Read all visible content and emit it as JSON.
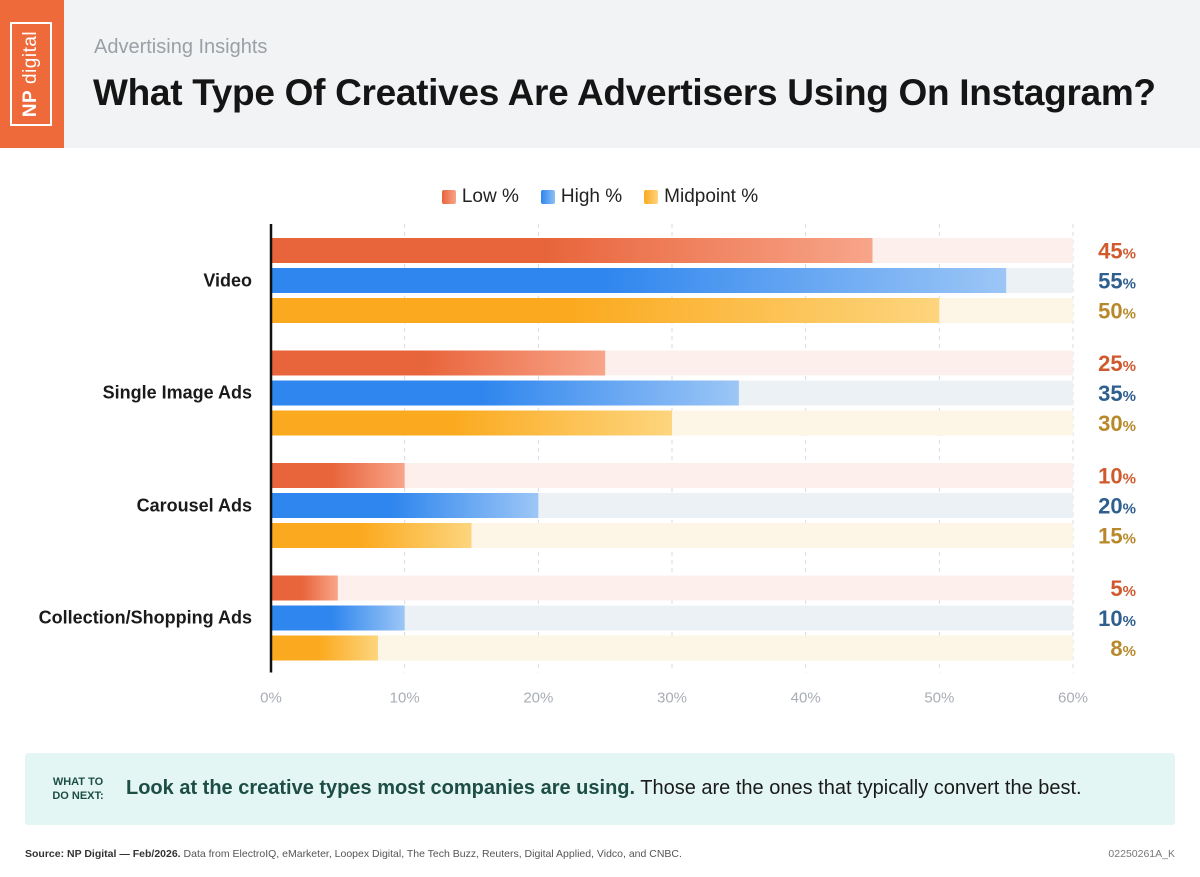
{
  "header": {
    "logo_np": "NP",
    "logo_digital": "digital",
    "kicker": "Advertising Insights",
    "title": "What Type Of Creatives Are Advertisers Using On Instagram?"
  },
  "legend": [
    {
      "label": "Low %",
      "color": "#ee6a3a"
    },
    {
      "label": "High %",
      "color": "#3b8ef0"
    },
    {
      "label": "Midpoint %",
      "color": "#fdb52d"
    }
  ],
  "chart_data": {
    "type": "bar",
    "orientation": "horizontal",
    "categories": [
      "Video",
      "Single Image Ads",
      "Carousel Ads",
      "Collection/Shopping Ads"
    ],
    "series": [
      {
        "name": "Low %",
        "values": [
          45,
          25,
          10,
          5
        ],
        "color": "#e8643a",
        "label_color": "#d05a2e",
        "track_color": "#fdf0ec"
      },
      {
        "name": "High %",
        "values": [
          55,
          35,
          20,
          10
        ],
        "color": "#2f86ee",
        "label_color": "#2f5f8f",
        "track_color": "#ecf1f6"
      },
      {
        "name": "Midpoint %",
        "values": [
          50,
          30,
          15,
          8
        ],
        "color": "#fbaa1f",
        "label_color": "#b8892a",
        "track_color": "#fdf6e6"
      }
    ],
    "value_suffix": "%",
    "xlim": [
      0,
      60
    ],
    "ticks": [
      "0%",
      "10%",
      "20%",
      "30%",
      "40%",
      "50%",
      "60%"
    ],
    "grid": true
  },
  "callout": {
    "tag_line1": "WHAT TO",
    "tag_line2": "DO NEXT:",
    "bold": "Look at the creative types most companies are using.",
    "rest": " Those are the ones that typically convert the best."
  },
  "footer": {
    "source_bold": "Source: NP Digital — Feb/2026.",
    "source_rest": " Data from ElectroIQ, eMarketer, Loopex Digital, The Tech Buzz, Reuters, Digital Applied, Vidco, and CNBC.",
    "code": "02250261A_K"
  }
}
